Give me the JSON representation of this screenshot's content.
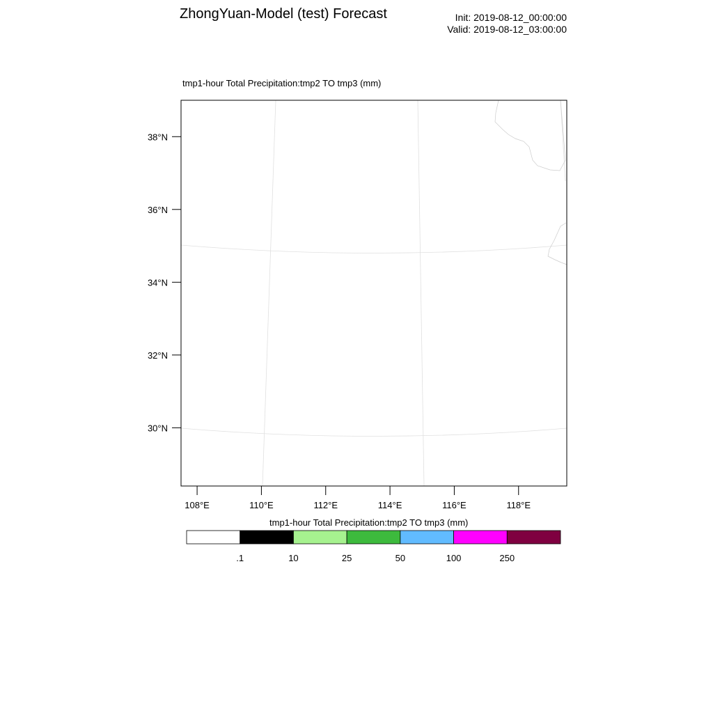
{
  "header": {
    "title": "ZhongYuan-Model (test) Forecast",
    "init_time": "Init: 2019-08-12_00:00:00",
    "valid_time": "Valid: 2019-08-12_03:00:00"
  },
  "map": {
    "subtitle": "tmp1-hour Total Precipitation:tmp2 TO tmp3   (mm)",
    "lat_labels": [
      "38°N",
      "36°N",
      "34°N",
      "32°N",
      "30°N"
    ],
    "lon_labels": [
      "108°E",
      "110°E",
      "112°E",
      "114°E",
      "116°E",
      "118°E"
    ],
    "lat_ticks_deg": [
      38,
      36,
      34,
      32,
      30
    ],
    "lon_ticks_deg": [
      108,
      110,
      112,
      114,
      116,
      118
    ],
    "lat_range": [
      28.4,
      39.0
    ],
    "lon_range": [
      107.5,
      119.5
    ],
    "gridline_color": "#e0e0e0",
    "coastline_color": "#cccccc",
    "frame_color": "#000000"
  },
  "colorbar": {
    "title": "tmp1-hour Total Precipitation:tmp2 TO tmp3  (mm)",
    "colors": [
      "#ffffff",
      "#000000",
      "#a6f28f",
      "#3dba3d",
      "#61bbff",
      "#ff00ff",
      "#7f0040"
    ],
    "labels": [
      ".1",
      "10",
      "25",
      "50",
      "100",
      "250"
    ]
  }
}
